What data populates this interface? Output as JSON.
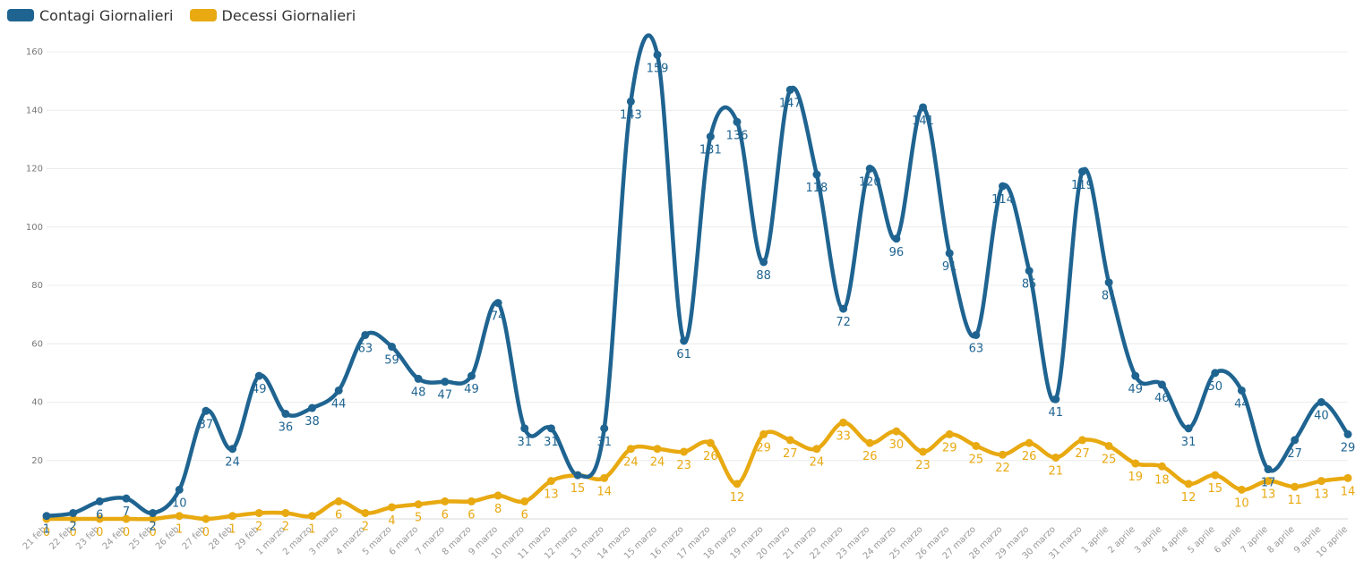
{
  "legend": [
    {
      "label": "Contagi Giornalieri",
      "color": "#1f6491"
    },
    {
      "label": "Decessi Giornalieri",
      "color": "#e8a911"
    }
  ],
  "chart_data": {
    "type": "line",
    "title": "",
    "xlabel": "",
    "ylabel": "",
    "ylim": [
      0,
      160
    ],
    "yticks": [
      20,
      40,
      60,
      80,
      100,
      120,
      140,
      160
    ],
    "grid": true,
    "legend_position": "top-left",
    "categories": [
      "21 feb",
      "22 feb",
      "23 feb",
      "24 feb",
      "25 feb",
      "26 feb",
      "27 feb",
      "28 feb",
      "29 feb",
      "1 marzo",
      "2 marzo",
      "3 marzo",
      "4 marzo",
      "5 marzo",
      "6 marzo",
      "7 marzo",
      "8 marzo",
      "9 marzo",
      "10 marzo",
      "11 marzo",
      "12 marzo",
      "13 marzo",
      "14 marzo",
      "15 marzo",
      "16 marzo",
      "17 marzo",
      "18 marzo",
      "19 marzo",
      "20 marzo",
      "21 marzo",
      "22 marzo",
      "23 marzo",
      "24 marzo",
      "25 marzo",
      "26 marzo",
      "27 marzo",
      "28 marzo",
      "29 marzo",
      "30 marzo",
      "31 marzo",
      "1 aprile",
      "2 aprile",
      "3 aprile",
      "4 aprile",
      "5 aprile",
      "6 aprile",
      "7 aprile",
      "8 aprile",
      "9 aprile",
      "10 aprile"
    ],
    "series": [
      {
        "name": "Contagi Giornalieri",
        "color": "#1f6491",
        "values": [
          1,
          2,
          6,
          7,
          2,
          10,
          37,
          24,
          49,
          36,
          38,
          44,
          63,
          59,
          48,
          47,
          49,
          74,
          31,
          31,
          15,
          31,
          143,
          159,
          61,
          131,
          136,
          88,
          147,
          118,
          72,
          120,
          96,
          141,
          91,
          63,
          114,
          85,
          41,
          119,
          81,
          49,
          46,
          31,
          50,
          44,
          17,
          27,
          40,
          29
        ],
        "labels": [
          "1",
          "2",
          "6",
          "7",
          "2",
          "10",
          "37",
          "24",
          "49",
          "36",
          "38",
          "44",
          "63",
          "59",
          "48",
          "47",
          "49",
          "74",
          "31",
          "31",
          "",
          "31",
          "143",
          "159",
          "61",
          "131",
          "136",
          "88",
          "147",
          "118",
          "72",
          "120",
          "96",
          "141",
          "91",
          "63",
          "114",
          "85",
          "41",
          "119",
          "81",
          "49",
          "46",
          "31",
          "50",
          "44",
          "17",
          "27",
          "40",
          "29"
        ]
      },
      {
        "name": "Decessi Giornalieri",
        "color": "#e8a911",
        "values": [
          0,
          0,
          0,
          0,
          0,
          1,
          0,
          1,
          2,
          2,
          1,
          6,
          2,
          4,
          5,
          6,
          6,
          8,
          6,
          13,
          15,
          14,
          24,
          24,
          23,
          26,
          12,
          29,
          27,
          24,
          33,
          26,
          30,
          23,
          29,
          25,
          22,
          26,
          21,
          27,
          25,
          19,
          18,
          12,
          15,
          10,
          13,
          11,
          13,
          14
        ],
        "labels": [
          "0",
          "0",
          "0",
          "0",
          "0",
          "1",
          "0",
          "1",
          "2",
          "2",
          "1",
          "6",
          "2",
          "4",
          "5",
          "6",
          "6",
          "8",
          "6",
          "13",
          "15",
          "14",
          "24",
          "24",
          "23",
          "26",
          "12",
          "29",
          "27",
          "24",
          "33",
          "26",
          "30",
          "23",
          "29",
          "25",
          "22",
          "26",
          "21",
          "27",
          "25",
          "19",
          "18",
          "12",
          "15",
          "10",
          "13",
          "11",
          "13",
          "14"
        ]
      }
    ]
  }
}
